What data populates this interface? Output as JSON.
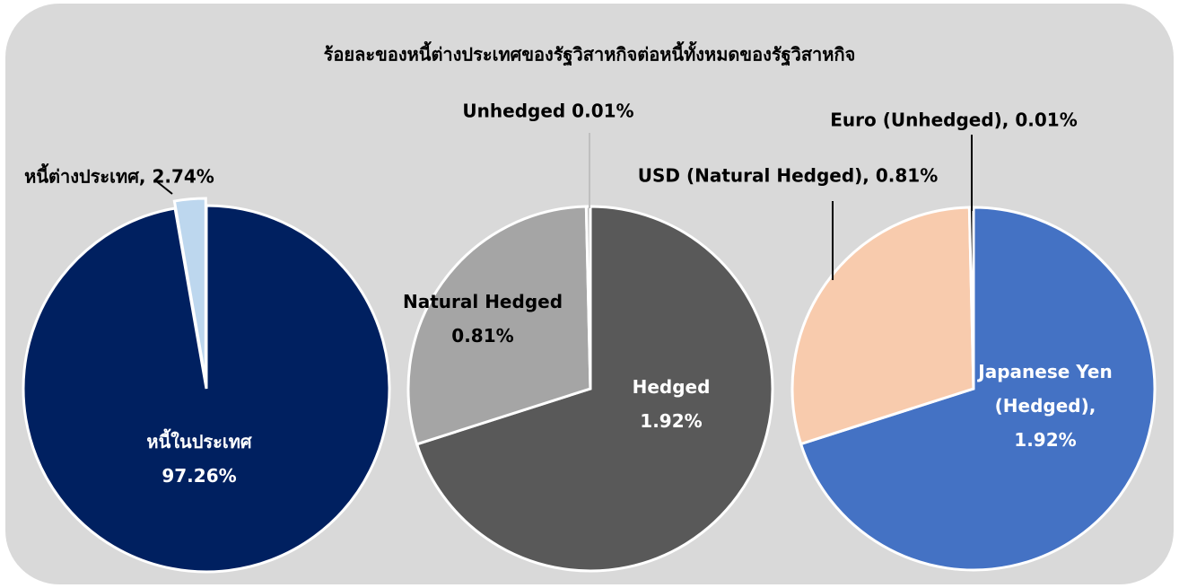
{
  "chart_data": [
    {
      "type": "pie",
      "title": "ร้อยละของหนี้ต่างประเทศของรัฐวิสาหกิจต่อหนี้ทั้งหมดของรัฐวิสาหกิจ",
      "values": [
        97.26,
        2.74
      ],
      "value_labels": [
        "หนี้ในประเทศ\n97.26%",
        "หนี้ต่างประเทศ, 2.74%"
      ],
      "colors": [
        "#002060",
        "#bdd7ee"
      ]
    },
    {
      "type": "pie",
      "values": [
        1.92,
        0.81,
        0.01
      ],
      "value_labels": [
        "Hedged\n1.92%",
        "Natural Hedged\n0.81%",
        "Unhedged 0.01%"
      ],
      "colors": [
        "#595959",
        "#a5a5a5",
        "#bfbfbf"
      ]
    },
    {
      "type": "pie",
      "values": [
        1.92,
        0.81,
        0.01
      ],
      "value_labels": [
        "Japanese Yen\n(Hedged),\n1.92%",
        "USD (Natural Hedged), 0.81%",
        "Euro (Unhedged), 0.01%"
      ],
      "colors": [
        "#4472c4",
        "#f8cbad",
        "#000000"
      ]
    }
  ]
}
